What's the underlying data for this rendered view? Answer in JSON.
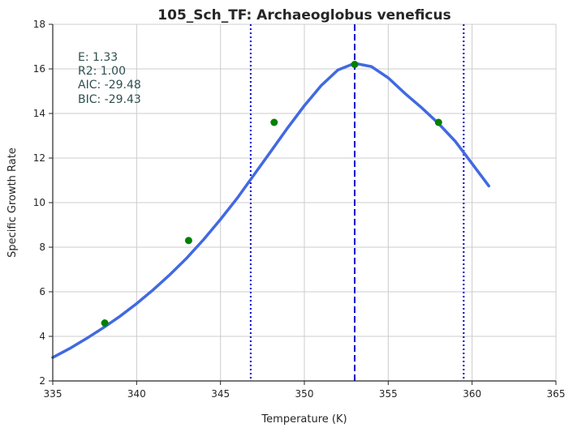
{
  "chart_data": {
    "type": "line",
    "title": "105_Sch_TF: Archaeoglobus veneficus",
    "xlabel": "Temperature (K)",
    "ylabel": "Specific Growth Rate",
    "xlim": [
      335,
      365
    ],
    "ylim": [
      2,
      18
    ],
    "xticks": [
      335,
      340,
      345,
      350,
      355,
      360,
      365
    ],
    "yticks": [
      2,
      4,
      6,
      8,
      10,
      12,
      14,
      16,
      18
    ],
    "grid": true,
    "stats": [
      "E:  1.33",
      "R2:  1.00",
      "AIC: -29.48",
      "BIC: -29.43"
    ],
    "fit_curve": {
      "color": "#4169e1",
      "x": [
        335.0,
        336.0,
        337.0,
        338.0,
        339.0,
        340.0,
        341.0,
        342.0,
        343.0,
        344.0,
        345.0,
        346.0,
        347.0,
        348.0,
        349.0,
        350.0,
        351.0,
        352.0,
        353.0,
        354.0,
        355.0,
        356.0,
        357.0,
        358.0,
        359.0,
        360.0,
        361.0
      ],
      "y": [
        3.05,
        3.45,
        3.9,
        4.38,
        4.9,
        5.47,
        6.1,
        6.78,
        7.52,
        8.35,
        9.25,
        10.2,
        11.25,
        12.3,
        13.35,
        14.35,
        15.25,
        15.95,
        16.25,
        16.1,
        15.6,
        14.9,
        14.25,
        13.55,
        12.75,
        11.75,
        10.75
      ]
    },
    "points": {
      "color": "#008000",
      "x": [
        338.1,
        343.1,
        348.2,
        353.0,
        358.0
      ],
      "y": [
        4.6,
        8.3,
        13.6,
        16.2,
        13.6
      ]
    },
    "vlines": [
      {
        "x": 346.8,
        "style": "dotted",
        "color": "#0000cd"
      },
      {
        "x": 353.0,
        "style": "dashed",
        "color": "#0000cd"
      },
      {
        "x": 359.5,
        "style": "dotted",
        "color": "#0000cd"
      }
    ]
  }
}
